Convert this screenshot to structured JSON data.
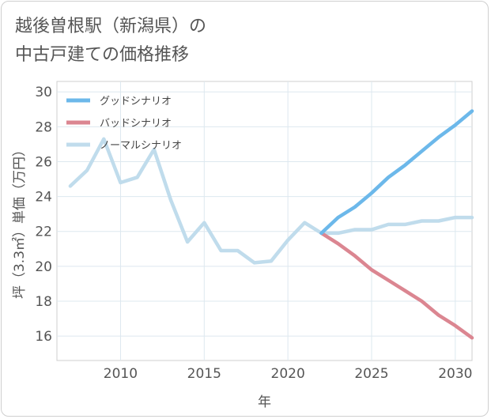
{
  "title_lines": [
    "越後曽根駅（新潟県）の",
    "中古戸建ての価格推移"
  ],
  "chart_data": {
    "type": "line",
    "title": "越後曽根駅（新潟県）の中古戸建ての価格推移",
    "xlabel": "年",
    "ylabel": "坪（3.3㎡）単価（万円）",
    "xlim": [
      2006.2,
      2031
    ],
    "ylim": [
      14.6,
      30.6
    ],
    "x_ticks": [
      2010,
      2015,
      2020,
      2025,
      2030
    ],
    "y_ticks": [
      16,
      18,
      20,
      22,
      24,
      26,
      28,
      30
    ],
    "grid": true,
    "legend_position": "top-left",
    "series": [
      {
        "name": "グッドシナリオ",
        "color": "#6cb8ea",
        "x": [
          2022,
          2023,
          2024,
          2025,
          2026,
          2027,
          2028,
          2029,
          2030,
          2031
        ],
        "values": [
          21.9,
          22.8,
          23.4,
          24.2,
          25.1,
          25.8,
          26.6,
          27.4,
          28.1,
          28.9
        ]
      },
      {
        "name": "バッドシナリオ",
        "color": "#db8691",
        "x": [
          2022,
          2023,
          2024,
          2025,
          2026,
          2027,
          2028,
          2029,
          2030,
          2031
        ],
        "values": [
          21.9,
          21.3,
          20.6,
          19.8,
          19.2,
          18.6,
          18.0,
          17.2,
          16.6,
          15.9
        ]
      },
      {
        "name": "ノーマルシナリオ",
        "color": "#c0dcec",
        "x": [
          2007,
          2008,
          2009,
          2010,
          2011,
          2012,
          2013,
          2014,
          2015,
          2016,
          2017,
          2018,
          2019,
          2020,
          2021,
          2022,
          2023,
          2024,
          2025,
          2026,
          2027,
          2028,
          2029,
          2030,
          2031
        ],
        "values": [
          24.6,
          25.5,
          27.3,
          24.8,
          25.1,
          26.7,
          23.8,
          21.4,
          22.5,
          20.9,
          20.9,
          20.2,
          20.3,
          21.5,
          22.5,
          21.9,
          21.9,
          22.1,
          22.1,
          22.4,
          22.4,
          22.6,
          22.6,
          22.8,
          22.8
        ]
      }
    ]
  }
}
